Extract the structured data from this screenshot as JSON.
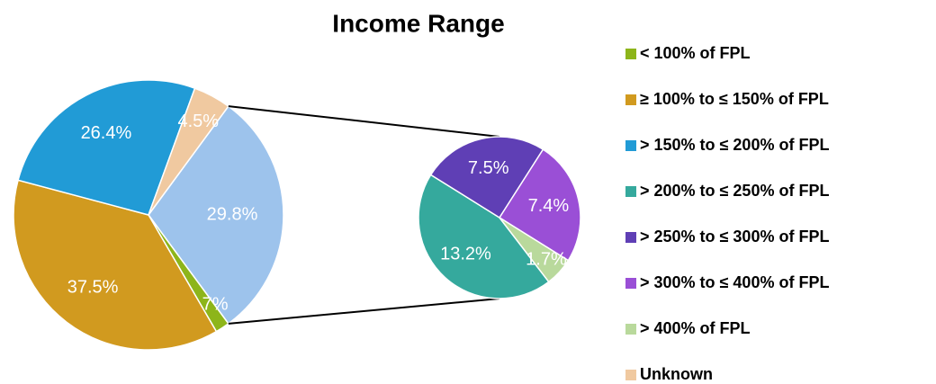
{
  "chart_data": {
    "type": "pie-of-pie",
    "title": "Income Range",
    "categories": [
      "< 100% of FPL",
      "≥ 100%  to ≤ 150% of FPL",
      "> 150% to ≤ 200% of FPL",
      "> 200% to ≤ 250% of FPL",
      "> 250% to ≤ 300% of FPL",
      "> 300% to ≤ 400% of FPL",
      "> 400% of FPL",
      "Unknown"
    ],
    "values": [
      1.7,
      37.5,
      26.4,
      13.2,
      7.5,
      7.4,
      1.7,
      4.5
    ],
    "value_labels": [
      "1.7%",
      "37.5%",
      "26.4%",
      "13.2%",
      "7.5%",
      "7.4%",
      "1.7%",
      "4.5%"
    ],
    "colors": [
      "#8db51a",
      "#d19a1f",
      "#219bd6",
      "#35a99d",
      "#5f3fb5",
      "#9a4fd6",
      "#b9d99c",
      "#f0c9a0"
    ],
    "other": {
      "value": 29.8,
      "value_label": "29.8%",
      "color": "#9dc3ec"
    },
    "legend": "right"
  }
}
